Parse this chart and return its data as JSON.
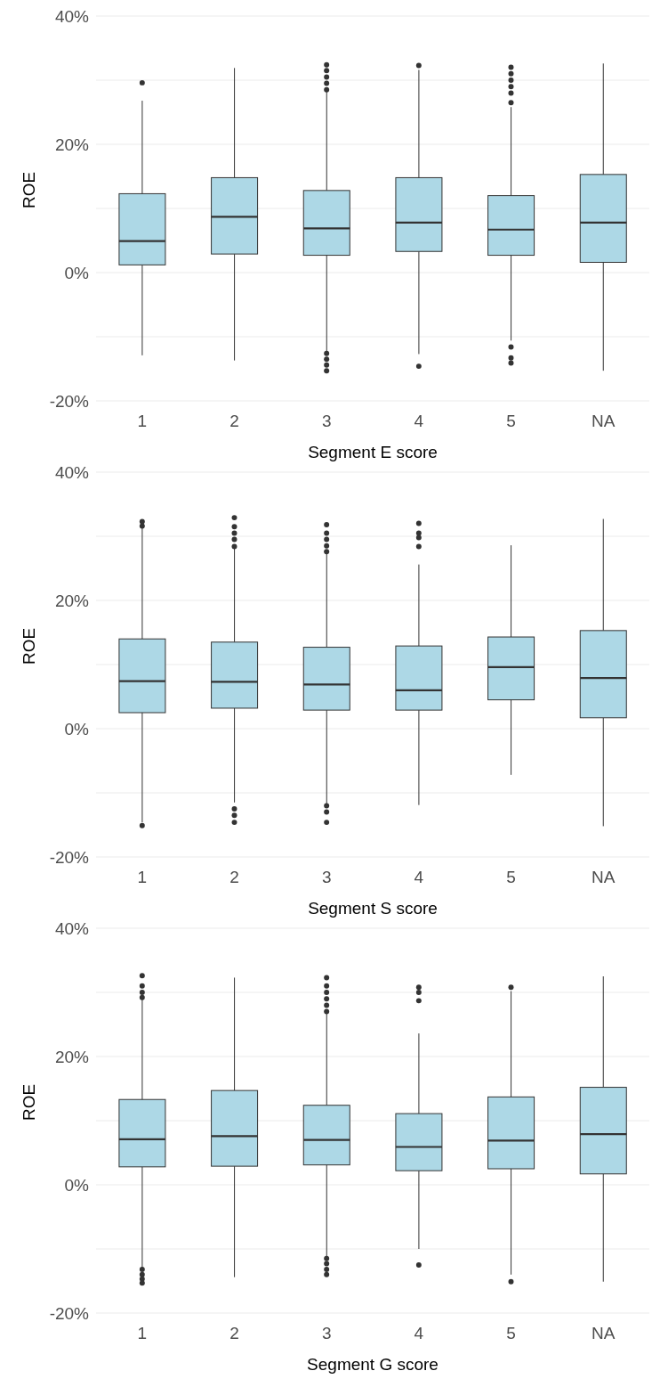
{
  "chart_data": [
    {
      "type": "box",
      "xlabel": "Segment E score",
      "ylabel": "ROE",
      "categories": [
        "1",
        "2",
        "3",
        "4",
        "5",
        "NA"
      ],
      "color": "#add8e6",
      "grid": "y",
      "ylim": [
        -20,
        40
      ],
      "yticks": [
        {
          "value": -20,
          "label": "-20%"
        },
        {
          "value": -10,
          "label": null
        },
        {
          "value": 0,
          "label": "0%"
        },
        {
          "value": 10,
          "label": null
        },
        {
          "value": 20,
          "label": "20%"
        },
        {
          "value": 30,
          "label": null
        },
        {
          "value": 40,
          "label": "40%"
        }
      ],
      "boxes": [
        {
          "low": -12.9,
          "q1": 1.2,
          "median": 4.9,
          "q3": 12.3,
          "high": 26.8,
          "outliers": [
            29.6
          ]
        },
        {
          "low": -13.7,
          "q1": 2.9,
          "median": 8.7,
          "q3": 14.8,
          "high": 31.9
        },
        {
          "low": -12.3,
          "q1": 2.7,
          "median": 6.9,
          "q3": 12.8,
          "high": 28.2,
          "outliers": [
            28.5,
            29.5,
            30.5,
            31.5,
            32.4,
            -12.6,
            -13.5,
            -14.4,
            -15.3
          ]
        },
        {
          "low": -12.7,
          "q1": 3.3,
          "median": 7.8,
          "q3": 14.8,
          "high": 31.6,
          "outliers": [
            32.3,
            -14.6
          ]
        },
        {
          "low": -10.6,
          "q1": 2.7,
          "median": 6.7,
          "q3": 12.0,
          "high": 25.8,
          "outliers": [
            26.5,
            28.0,
            29.0,
            30.0,
            31.0,
            32.0,
            -11.6,
            -13.3,
            -14.1
          ]
        },
        {
          "low": -15.3,
          "q1": 1.6,
          "median": 7.8,
          "q3": 15.3,
          "high": 32.6
        }
      ]
    },
    {
      "type": "box",
      "xlabel": "Segment S score",
      "ylabel": "ROE",
      "categories": [
        "1",
        "2",
        "3",
        "4",
        "5",
        "NA"
      ],
      "color": "#add8e6",
      "grid": "y",
      "ylim": [
        -20,
        40
      ],
      "yticks": [
        {
          "value": -20,
          "label": "-20%"
        },
        {
          "value": -10,
          "label": null
        },
        {
          "value": 0,
          "label": "0%"
        },
        {
          "value": 10,
          "label": null
        },
        {
          "value": 20,
          "label": "20%"
        },
        {
          "value": 30,
          "label": null
        },
        {
          "value": 40,
          "label": "40%"
        }
      ],
      "boxes": [
        {
          "low": -14.6,
          "q1": 2.5,
          "median": 7.4,
          "q3": 14.0,
          "high": 31.4,
          "outliers": [
            31.6,
            32.3,
            -15.1
          ]
        },
        {
          "low": -11.5,
          "q1": 3.2,
          "median": 7.3,
          "q3": 13.5,
          "high": 28.3,
          "outliers": [
            28.4,
            29.5,
            30.5,
            31.5,
            32.9,
            -12.5,
            -13.5,
            -14.6
          ]
        },
        {
          "low": -11.7,
          "q1": 2.9,
          "median": 6.9,
          "q3": 12.7,
          "high": 27.3,
          "outliers": [
            27.6,
            28.5,
            29.5,
            30.5,
            31.8,
            -12.0,
            -13.0,
            -14.6
          ]
        },
        {
          "low": -11.9,
          "q1": 2.9,
          "median": 6.0,
          "q3": 12.9,
          "high": 25.6,
          "outliers": [
            28.4,
            29.8,
            30.5,
            32.0
          ]
        },
        {
          "low": -7.2,
          "q1": 4.5,
          "median": 9.6,
          "q3": 14.3,
          "high": 28.6
        },
        {
          "low": -15.2,
          "q1": 1.7,
          "median": 7.9,
          "q3": 15.3,
          "high": 32.7
        }
      ]
    },
    {
      "type": "box",
      "xlabel": "Segment G score",
      "ylabel": "ROE",
      "categories": [
        "1",
        "2",
        "3",
        "4",
        "5",
        "NA"
      ],
      "color": "#add8e6",
      "grid": "y",
      "ylim": [
        -20,
        40
      ],
      "yticks": [
        {
          "value": -20,
          "label": "-20%"
        },
        {
          "value": -10,
          "label": null
        },
        {
          "value": 0,
          "label": "0%"
        },
        {
          "value": 10,
          "label": null
        },
        {
          "value": 20,
          "label": "20%"
        },
        {
          "value": 30,
          "label": null
        },
        {
          "value": 40,
          "label": "40%"
        }
      ],
      "boxes": [
        {
          "low": -13.0,
          "q1": 2.8,
          "median": 7.1,
          "q3": 13.3,
          "high": 28.9,
          "outliers": [
            29.2,
            30.0,
            31.0,
            32.6,
            -13.2,
            -14.0,
            -14.7,
            -15.3
          ]
        },
        {
          "low": -14.4,
          "q1": 2.9,
          "median": 7.6,
          "q3": 14.7,
          "high": 32.3
        },
        {
          "low": -11.3,
          "q1": 3.1,
          "median": 7.0,
          "q3": 12.4,
          "high": 26.7,
          "outliers": [
            27.0,
            28.0,
            29.0,
            30.0,
            31.0,
            32.3,
            -11.5,
            -12.3,
            -13.2,
            -14.0
          ]
        },
        {
          "low": -10.0,
          "q1": 2.2,
          "median": 5.9,
          "q3": 11.1,
          "high": 23.6,
          "outliers": [
            28.7,
            30.0,
            30.8,
            -12.5
          ]
        },
        {
          "low": -14.0,
          "q1": 2.5,
          "median": 6.9,
          "q3": 13.7,
          "high": 30.2,
          "outliers": [
            30.8,
            -15.1
          ]
        },
        {
          "low": -15.1,
          "q1": 1.7,
          "median": 7.9,
          "q3": 15.2,
          "high": 32.5
        }
      ]
    }
  ]
}
